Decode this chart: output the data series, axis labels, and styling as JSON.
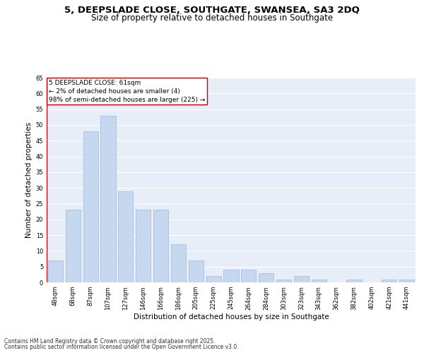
{
  "title_line1": "5, DEEPSLADE CLOSE, SOUTHGATE, SWANSEA, SA3 2DQ",
  "title_line2": "Size of property relative to detached houses in Southgate",
  "xlabel": "Distribution of detached houses by size in Southgate",
  "ylabel": "Number of detached properties",
  "bar_labels": [
    "48sqm",
    "68sqm",
    "87sqm",
    "107sqm",
    "127sqm",
    "146sqm",
    "166sqm",
    "186sqm",
    "205sqm",
    "225sqm",
    "245sqm",
    "264sqm",
    "284sqm",
    "303sqm",
    "323sqm",
    "343sqm",
    "362sqm",
    "382sqm",
    "402sqm",
    "421sqm",
    "441sqm"
  ],
  "bar_values": [
    7,
    23,
    48,
    53,
    29,
    23,
    23,
    12,
    7,
    2,
    4,
    4,
    3,
    1,
    2,
    1,
    0,
    1,
    0,
    1,
    1
  ],
  "bar_color": "#c5d8f0",
  "bar_edge_color": "#a0b8d8",
  "highlight_edge_color": "#cc0000",
  "annotation_box_text": "5 DEEPSLADE CLOSE: 61sqm\n← 2% of detached houses are smaller (4)\n98% of semi-detached houses are larger (225) →",
  "annotation_box_color": "#ffffff",
  "annotation_box_edge_color": "#cc0000",
  "ylim": [
    0,
    65
  ],
  "yticks": [
    0,
    5,
    10,
    15,
    20,
    25,
    30,
    35,
    40,
    45,
    50,
    55,
    60,
    65
  ],
  "bg_color": "#ffffff",
  "plot_bg_color": "#e8eef8",
  "footer_line1": "Contains HM Land Registry data © Crown copyright and database right 2025.",
  "footer_line2": "Contains public sector information licensed under the Open Government Licence v3.0.",
  "grid_color": "#ffffff",
  "title_fontsize": 9.5,
  "subtitle_fontsize": 8.5,
  "axis_label_fontsize": 7.5,
  "tick_fontsize": 6,
  "annotation_fontsize": 6.5,
  "footer_fontsize": 5.5
}
